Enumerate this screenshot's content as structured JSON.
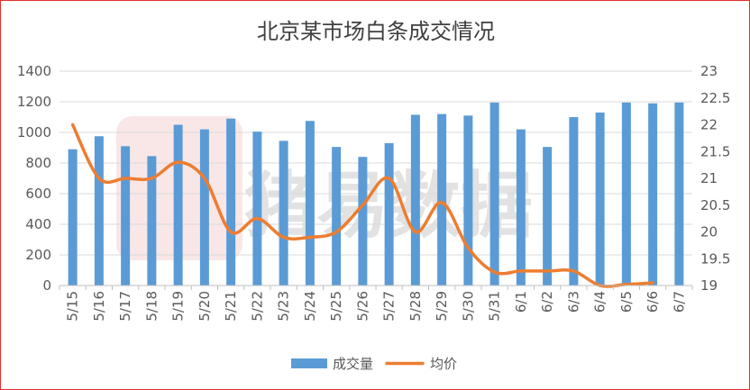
{
  "chart_data": {
    "type": "bar+line",
    "title": "北京某市场白条成交情况",
    "categories": [
      "5/15",
      "5/16",
      "5/17",
      "5/18",
      "5/19",
      "5/20",
      "5/21",
      "5/22",
      "5/23",
      "5/24",
      "5/25",
      "5/26",
      "5/27",
      "5/28",
      "5/29",
      "5/30",
      "5/31",
      "6/1",
      "6/2",
      "6/3",
      "6/4",
      "6/5",
      "6/6",
      "6/7"
    ],
    "series": [
      {
        "name": "成交量",
        "kind": "bar",
        "axis": "left",
        "color": "#5b9bd5",
        "values": [
          890,
          975,
          910,
          845,
          1050,
          1020,
          1090,
          1005,
          945,
          1075,
          905,
          840,
          930,
          1115,
          1120,
          1110,
          1195,
          1020,
          905,
          1100,
          1130,
          1195,
          1190,
          1195
        ]
      },
      {
        "name": "均价",
        "kind": "line",
        "axis": "right",
        "color": "#ed7d31",
        "values": [
          22.0,
          21.0,
          21.0,
          21.0,
          21.3,
          21.0,
          20.0,
          20.25,
          19.9,
          19.9,
          20.0,
          20.5,
          21.0,
          20.0,
          20.55,
          19.7,
          19.25,
          19.27,
          19.27,
          19.27,
          19.0,
          19.02,
          19.05,
          null
        ]
      }
    ],
    "y_left": {
      "min": 0,
      "max": 1400,
      "ticks": [
        "0",
        "200",
        "400",
        "600",
        "800",
        "1000",
        "1200",
        "1400"
      ]
    },
    "y_right": {
      "min": 19,
      "max": 23,
      "ticks": [
        "19",
        "19.5",
        "20",
        "20.5",
        "21",
        "21.5",
        "22",
        "22.5",
        "23"
      ]
    },
    "grid": true,
    "legend_position": "bottom",
    "watermark": "猪易数据"
  }
}
